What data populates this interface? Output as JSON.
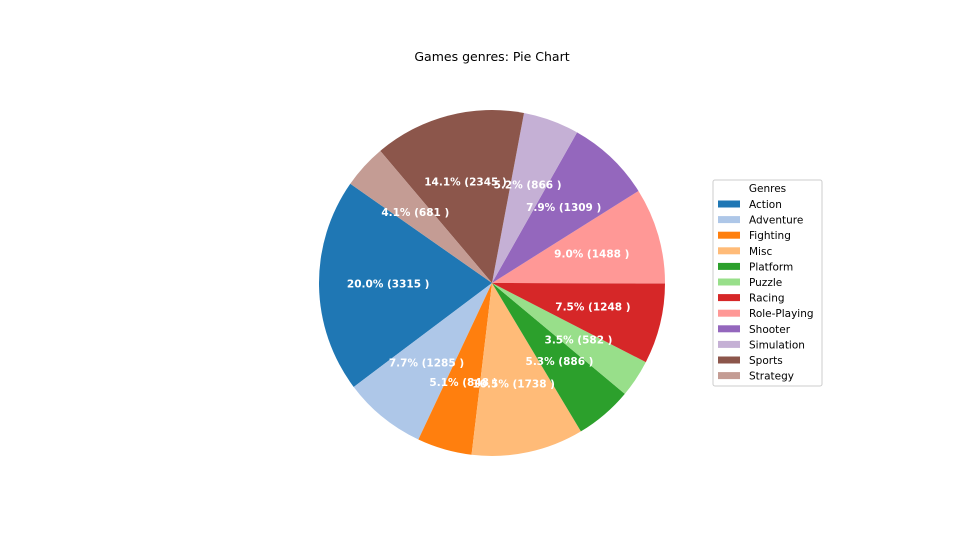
{
  "chart_data": {
    "type": "pie",
    "title": "Games genres: Pie Chart",
    "start_angle_deg": 145,
    "direction": "counterclockwise",
    "slices": [
      {
        "name": "Action",
        "value": 3315,
        "label": "20.0% (3315 )",
        "color": "#1f77b4"
      },
      {
        "name": "Adventure",
        "value": 1285,
        "label": "7.7% (1285 )",
        "color": "#aec7e8"
      },
      {
        "name": "Fighting",
        "value": 848,
        "label": "5.1% (848 )",
        "color": "#ff7f0e"
      },
      {
        "name": "Misc",
        "value": 1738,
        "label": "10.5% (1738 )",
        "color": "#ffbb78"
      },
      {
        "name": "Platform",
        "value": 886,
        "label": "5.3% (886 )",
        "color": "#2ca02c"
      },
      {
        "name": "Puzzle",
        "value": 582,
        "label": "3.5% (582 )",
        "color": "#98df8a"
      },
      {
        "name": "Racing",
        "value": 1248,
        "label": "7.5% (1248 )",
        "color": "#d62728"
      },
      {
        "name": "Role-Playing",
        "value": 1488,
        "label": "9.0% (1488 )",
        "color": "#ff9896"
      },
      {
        "name": "Shooter",
        "value": 1309,
        "label": "7.9% (1309 )",
        "color": "#9467bd"
      },
      {
        "name": "Simulation",
        "value": 866,
        "label": "5.2% (866 )",
        "color": "#c5b0d5"
      },
      {
        "name": "Sports",
        "value": 2345,
        "label": "14.1% (2345 )",
        "color": "#8c564b"
      },
      {
        "name": "Strategy",
        "value": 681,
        "label": "4.1% (681 )",
        "color": "#c49c94"
      }
    ],
    "legend": {
      "title": "Genres",
      "position": "right"
    }
  }
}
